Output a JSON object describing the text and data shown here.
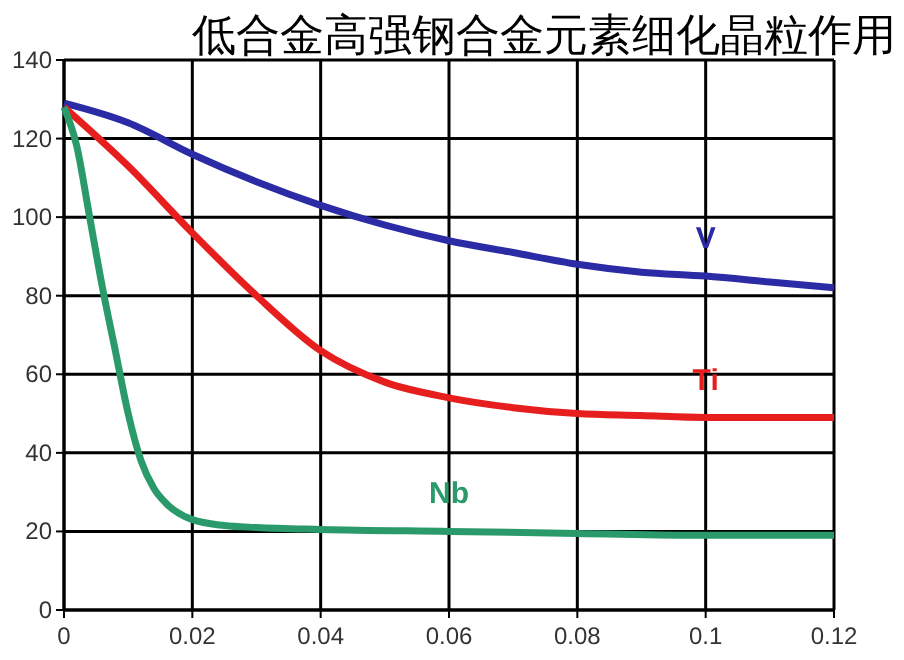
{
  "chart_data": {
    "type": "line",
    "title": "低合金高强钢合金元素细化晶粒作用",
    "xlim": [
      0,
      0.12
    ],
    "xticks": [
      0,
      0.02,
      0.04,
      0.06,
      0.08,
      {
        "value": 0.1,
        "label": "0.1"
      },
      0.12
    ],
    "ylim": [
      0,
      140
    ],
    "yticks": [
      0,
      20,
      40,
      60,
      80,
      100,
      120,
      140
    ],
    "grid": true,
    "legend": false,
    "marker": "none",
    "line_style": "solid",
    "series": [
      {
        "name": "V",
        "color": "#2b2ba6",
        "x": [
          0,
          0.01,
          0.02,
          0.03,
          0.04,
          0.05,
          0.06,
          0.07,
          0.08,
          0.09,
          0.1,
          0.11,
          0.12
        ],
        "values": [
          129,
          124,
          116,
          109,
          103,
          98,
          94,
          91,
          88,
          86,
          85,
          83.5,
          82
        ]
      },
      {
        "name": "Ti",
        "color": "#e61e1e",
        "x": [
          0,
          0.01,
          0.02,
          0.03,
          0.04,
          0.05,
          0.06,
          0.07,
          0.08,
          0.09,
          0.1,
          0.11,
          0.12
        ],
        "values": [
          128,
          113,
          96,
          80,
          66,
          58,
          54,
          51.5,
          50,
          49.5,
          49,
          49,
          49
        ]
      },
      {
        "name": "Nb",
        "color": "#2a9a6a",
        "x": [
          0,
          0.002,
          0.004,
          0.006,
          0.008,
          0.01,
          0.012,
          0.014,
          0.016,
          0.02,
          0.025,
          0.03,
          0.04,
          0.06,
          0.08,
          0.1,
          0.12
        ],
        "values": [
          128,
          118,
          100,
          82,
          66,
          50,
          38,
          31,
          27,
          23,
          21.5,
          21,
          20.5,
          20,
          19.5,
          19,
          19
        ]
      }
    ]
  }
}
